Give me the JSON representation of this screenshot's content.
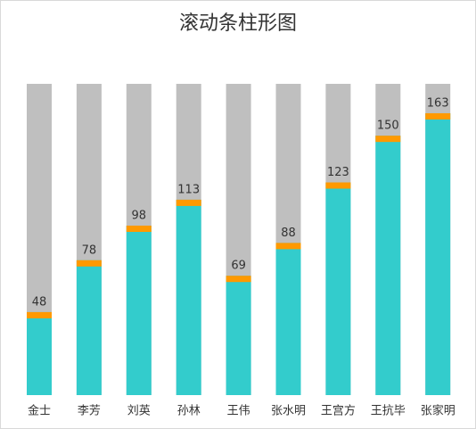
{
  "chart_data": {
    "type": "bar",
    "title": "滚动条柱形图",
    "categories": [
      "金士",
      "李芳",
      "刘英",
      "孙林",
      "王伟",
      "张水明",
      "王宫方",
      "王抗毕",
      "张家明"
    ],
    "values": [
      48,
      78,
      98,
      113,
      69,
      88,
      123,
      150,
      163
    ],
    "color": "#33CCCC",
    "cap_color": "#FF9900",
    "track_color": "#BFBFBF",
    "ylim": [
      0,
      180
    ]
  }
}
